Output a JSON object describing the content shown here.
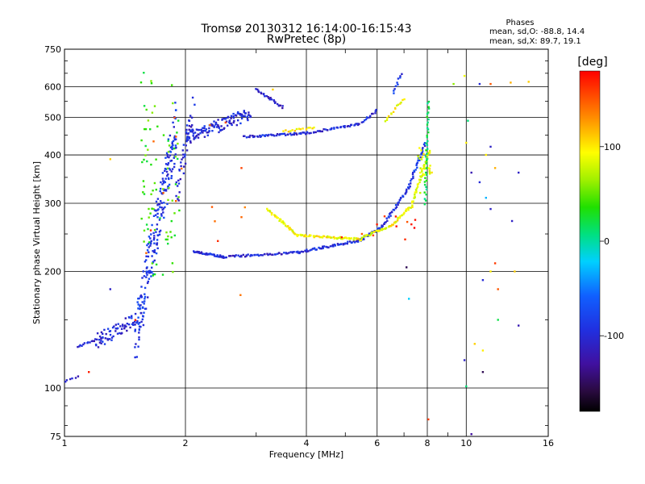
{
  "chart_data": {
    "type": "scatter",
    "title": "Tromsø 20130312 16:14:00-16:15:43",
    "subtitle": "RwPretec (8p)",
    "xlabel": "Frequency [MHz]",
    "ylabel": "Stationary phase Virtual Height [km]",
    "x_scale": "log",
    "y_scale": "log",
    "xlim": [
      1,
      16
    ],
    "ylim": [
      75,
      750
    ],
    "x_ticks": [
      1,
      2,
      4,
      6,
      8,
      10,
      16
    ],
    "x_tick_labels": [
      "1",
      "2",
      "4",
      "6",
      "8",
      "10",
      "16"
    ],
    "y_ticks": [
      75,
      100,
      200,
      300,
      400,
      500,
      600,
      750
    ],
    "y_tick_labels": [
      "75",
      "100",
      "200",
      "300",
      "400",
      "500",
      "600",
      "750"
    ],
    "grid": true,
    "phase_stats": {
      "heading": "Phases",
      "line_o": "mean, sd,O: -88.8, 14.4",
      "line_x": "mean, sd,X: 89.7, 19.1"
    },
    "colorbar": {
      "label": "[deg]",
      "range": [
        -180,
        180
      ],
      "ticks": [
        100,
        0,
        -100
      ],
      "tick_labels": [
        "100",
        "0",
        "-100"
      ]
    },
    "traces": [
      {
        "f0": 1.0,
        "f1": 1.08,
        "h0": 104,
        "h1": 107,
        "phase": -110,
        "n": 6
      },
      {
        "f0": 1.08,
        "f1": 1.25,
        "h0": 128,
        "h1": 135,
        "phase": -105,
        "n": 18
      },
      {
        "f0": 1.2,
        "f1": 1.5,
        "h0": 132,
        "h1": 150,
        "phase": -100,
        "n": 60,
        "spread": 0.15
      },
      {
        "f0": 1.5,
        "f1": 1.9,
        "h0": 135,
        "h1": 480,
        "phase": -90,
        "n": 230,
        "spread": 0.55
      },
      {
        "f0": 1.55,
        "f1": 1.95,
        "h0": 200,
        "h1": 600,
        "phase": 40,
        "n": 80,
        "spread": 0.5,
        "scatter": true
      },
      {
        "f0": 1.9,
        "f1": 2.1,
        "h0": 320,
        "h1": 520,
        "phase": -105,
        "n": 45,
        "spread": 0.35
      },
      {
        "f0": 2.0,
        "f1": 2.9,
        "h0": 440,
        "h1": 510,
        "phase": -100,
        "n": 120,
        "spread": 0.12
      },
      {
        "f0": 2.1,
        "f1": 2.5,
        "h0": 225,
        "h1": 218,
        "phase": -100,
        "n": 40
      },
      {
        "f0": 2.5,
        "f1": 3.8,
        "h0": 218,
        "h1": 224,
        "phase": -105,
        "n": 55
      },
      {
        "f0": 3.8,
        "f1": 5.4,
        "h0": 224,
        "h1": 240,
        "phase": -100,
        "n": 55
      },
      {
        "f0": 5.4,
        "f1": 6.2,
        "h0": 240,
        "h1": 262,
        "phase": -95,
        "n": 30
      },
      {
        "f0": 6.2,
        "f1": 7.2,
        "h0": 262,
        "h1": 330,
        "phase": -95,
        "n": 35
      },
      {
        "f0": 7.2,
        "f1": 7.9,
        "h0": 330,
        "h1": 430,
        "phase": -90,
        "n": 30
      },
      {
        "f0": 3.2,
        "f1": 3.8,
        "h0": 290,
        "h1": 248,
        "phase": 90,
        "n": 40
      },
      {
        "f0": 3.8,
        "f1": 5.5,
        "h0": 248,
        "h1": 242,
        "phase": 95,
        "n": 60
      },
      {
        "f0": 5.5,
        "f1": 6.5,
        "h0": 245,
        "h1": 262,
        "phase": 90,
        "n": 30
      },
      {
        "f0": 6.5,
        "f1": 7.3,
        "h0": 262,
        "h1": 295,
        "phase": 95,
        "n": 25
      },
      {
        "f0": 7.3,
        "f1": 8.1,
        "h0": 295,
        "h1": 410,
        "phase": 85,
        "n": 40
      },
      {
        "f0": 2.8,
        "f1": 4.0,
        "h0": 445,
        "h1": 455,
        "phase": -100,
        "n": 50
      },
      {
        "f0": 4.0,
        "f1": 5.4,
        "h0": 455,
        "h1": 480,
        "phase": -100,
        "n": 40
      },
      {
        "f0": 5.4,
        "f1": 6.0,
        "h0": 480,
        "h1": 520,
        "phase": -100,
        "n": 15
      },
      {
        "f0": 3.5,
        "f1": 4.2,
        "h0": 460,
        "h1": 470,
        "phase": 100,
        "n": 15
      },
      {
        "f0": 3.0,
        "f1": 3.5,
        "h0": 590,
        "h1": 530,
        "phase": -110,
        "n": 25
      },
      {
        "f0": 6.3,
        "f1": 7.0,
        "h0": 490,
        "h1": 560,
        "phase": 90,
        "n": 15
      },
      {
        "f0": 6.6,
        "f1": 6.9,
        "h0": 580,
        "h1": 650,
        "phase": -90,
        "n": 10
      },
      {
        "f0": 7.9,
        "f1": 8.05,
        "h0": 300,
        "h1": 550,
        "phase": 20,
        "n": 40
      },
      {
        "f0": 7.6,
        "f1": 8.2,
        "h0": 330,
        "h1": 410,
        "phase": 90,
        "n": 25,
        "spread": 0.2,
        "scatter": true
      },
      {
        "f0": 5.7,
        "f1": 7.5,
        "h0": 250,
        "h1": 280,
        "phase": 170,
        "n": 10,
        "spread": 0.2,
        "scatter": true
      },
      {
        "f0": 1.5,
        "f1": 2.9,
        "h0": 160,
        "h1": 560,
        "phase": 150,
        "n": 18,
        "spread": 0.6,
        "scatter": true
      }
    ],
    "scattered": [
      {
        "f": 8.05,
        "h": 83,
        "phase": 160
      },
      {
        "f": 7.1,
        "h": 205,
        "phase": -150
      },
      {
        "f": 7.2,
        "h": 170,
        "phase": -20
      },
      {
        "f": 9.3,
        "h": 610,
        "phase": 60
      },
      {
        "f": 9.9,
        "h": 640,
        "phase": 90
      },
      {
        "f": 10.8,
        "h": 610,
        "phase": -100
      },
      {
        "f": 11.5,
        "h": 610,
        "phase": 150
      },
      {
        "f": 12.9,
        "h": 615,
        "phase": 120
      },
      {
        "f": 14.3,
        "h": 618,
        "phase": 110
      },
      {
        "f": 10.1,
        "h": 490,
        "phase": 10
      },
      {
        "f": 10.0,
        "h": 430,
        "phase": 100
      },
      {
        "f": 10.3,
        "h": 360,
        "phase": -120
      },
      {
        "f": 11.5,
        "h": 420,
        "phase": -110
      },
      {
        "f": 11.2,
        "h": 400,
        "phase": 100
      },
      {
        "f": 11.8,
        "h": 370,
        "phase": 120
      },
      {
        "f": 10.8,
        "h": 340,
        "phase": -100
      },
      {
        "f": 11.2,
        "h": 310,
        "phase": -30
      },
      {
        "f": 11.5,
        "h": 290,
        "phase": -110
      },
      {
        "f": 13.5,
        "h": 360,
        "phase": -110
      },
      {
        "f": 13.0,
        "h": 270,
        "phase": -110
      },
      {
        "f": 11.8,
        "h": 210,
        "phase": 160
      },
      {
        "f": 11.5,
        "h": 200,
        "phase": 100
      },
      {
        "f": 11.0,
        "h": 190,
        "phase": -100
      },
      {
        "f": 12.0,
        "h": 180,
        "phase": 150
      },
      {
        "f": 13.2,
        "h": 200,
        "phase": 110
      },
      {
        "f": 13.5,
        "h": 145,
        "phase": -120
      },
      {
        "f": 12.0,
        "h": 150,
        "phase": 20
      },
      {
        "f": 10.5,
        "h": 130,
        "phase": 110
      },
      {
        "f": 11.0,
        "h": 125,
        "phase": 100
      },
      {
        "f": 9.9,
        "h": 118,
        "phase": -110
      },
      {
        "f": 10.0,
        "h": 101,
        "phase": 10
      },
      {
        "f": 11.0,
        "h": 110,
        "phase": -150
      },
      {
        "f": 10.3,
        "h": 76,
        "phase": -130
      },
      {
        "f": 5.5,
        "h": 250,
        "phase": 150
      },
      {
        "f": 4.9,
        "h": 245,
        "phase": 170
      },
      {
        "f": 3.3,
        "h": 590,
        "phase": 110
      },
      {
        "f": 1.15,
        "h": 110,
        "phase": 170
      },
      {
        "f": 1.3,
        "h": 180,
        "phase": -110
      },
      {
        "f": 1.3,
        "h": 390,
        "phase": 110
      }
    ]
  }
}
